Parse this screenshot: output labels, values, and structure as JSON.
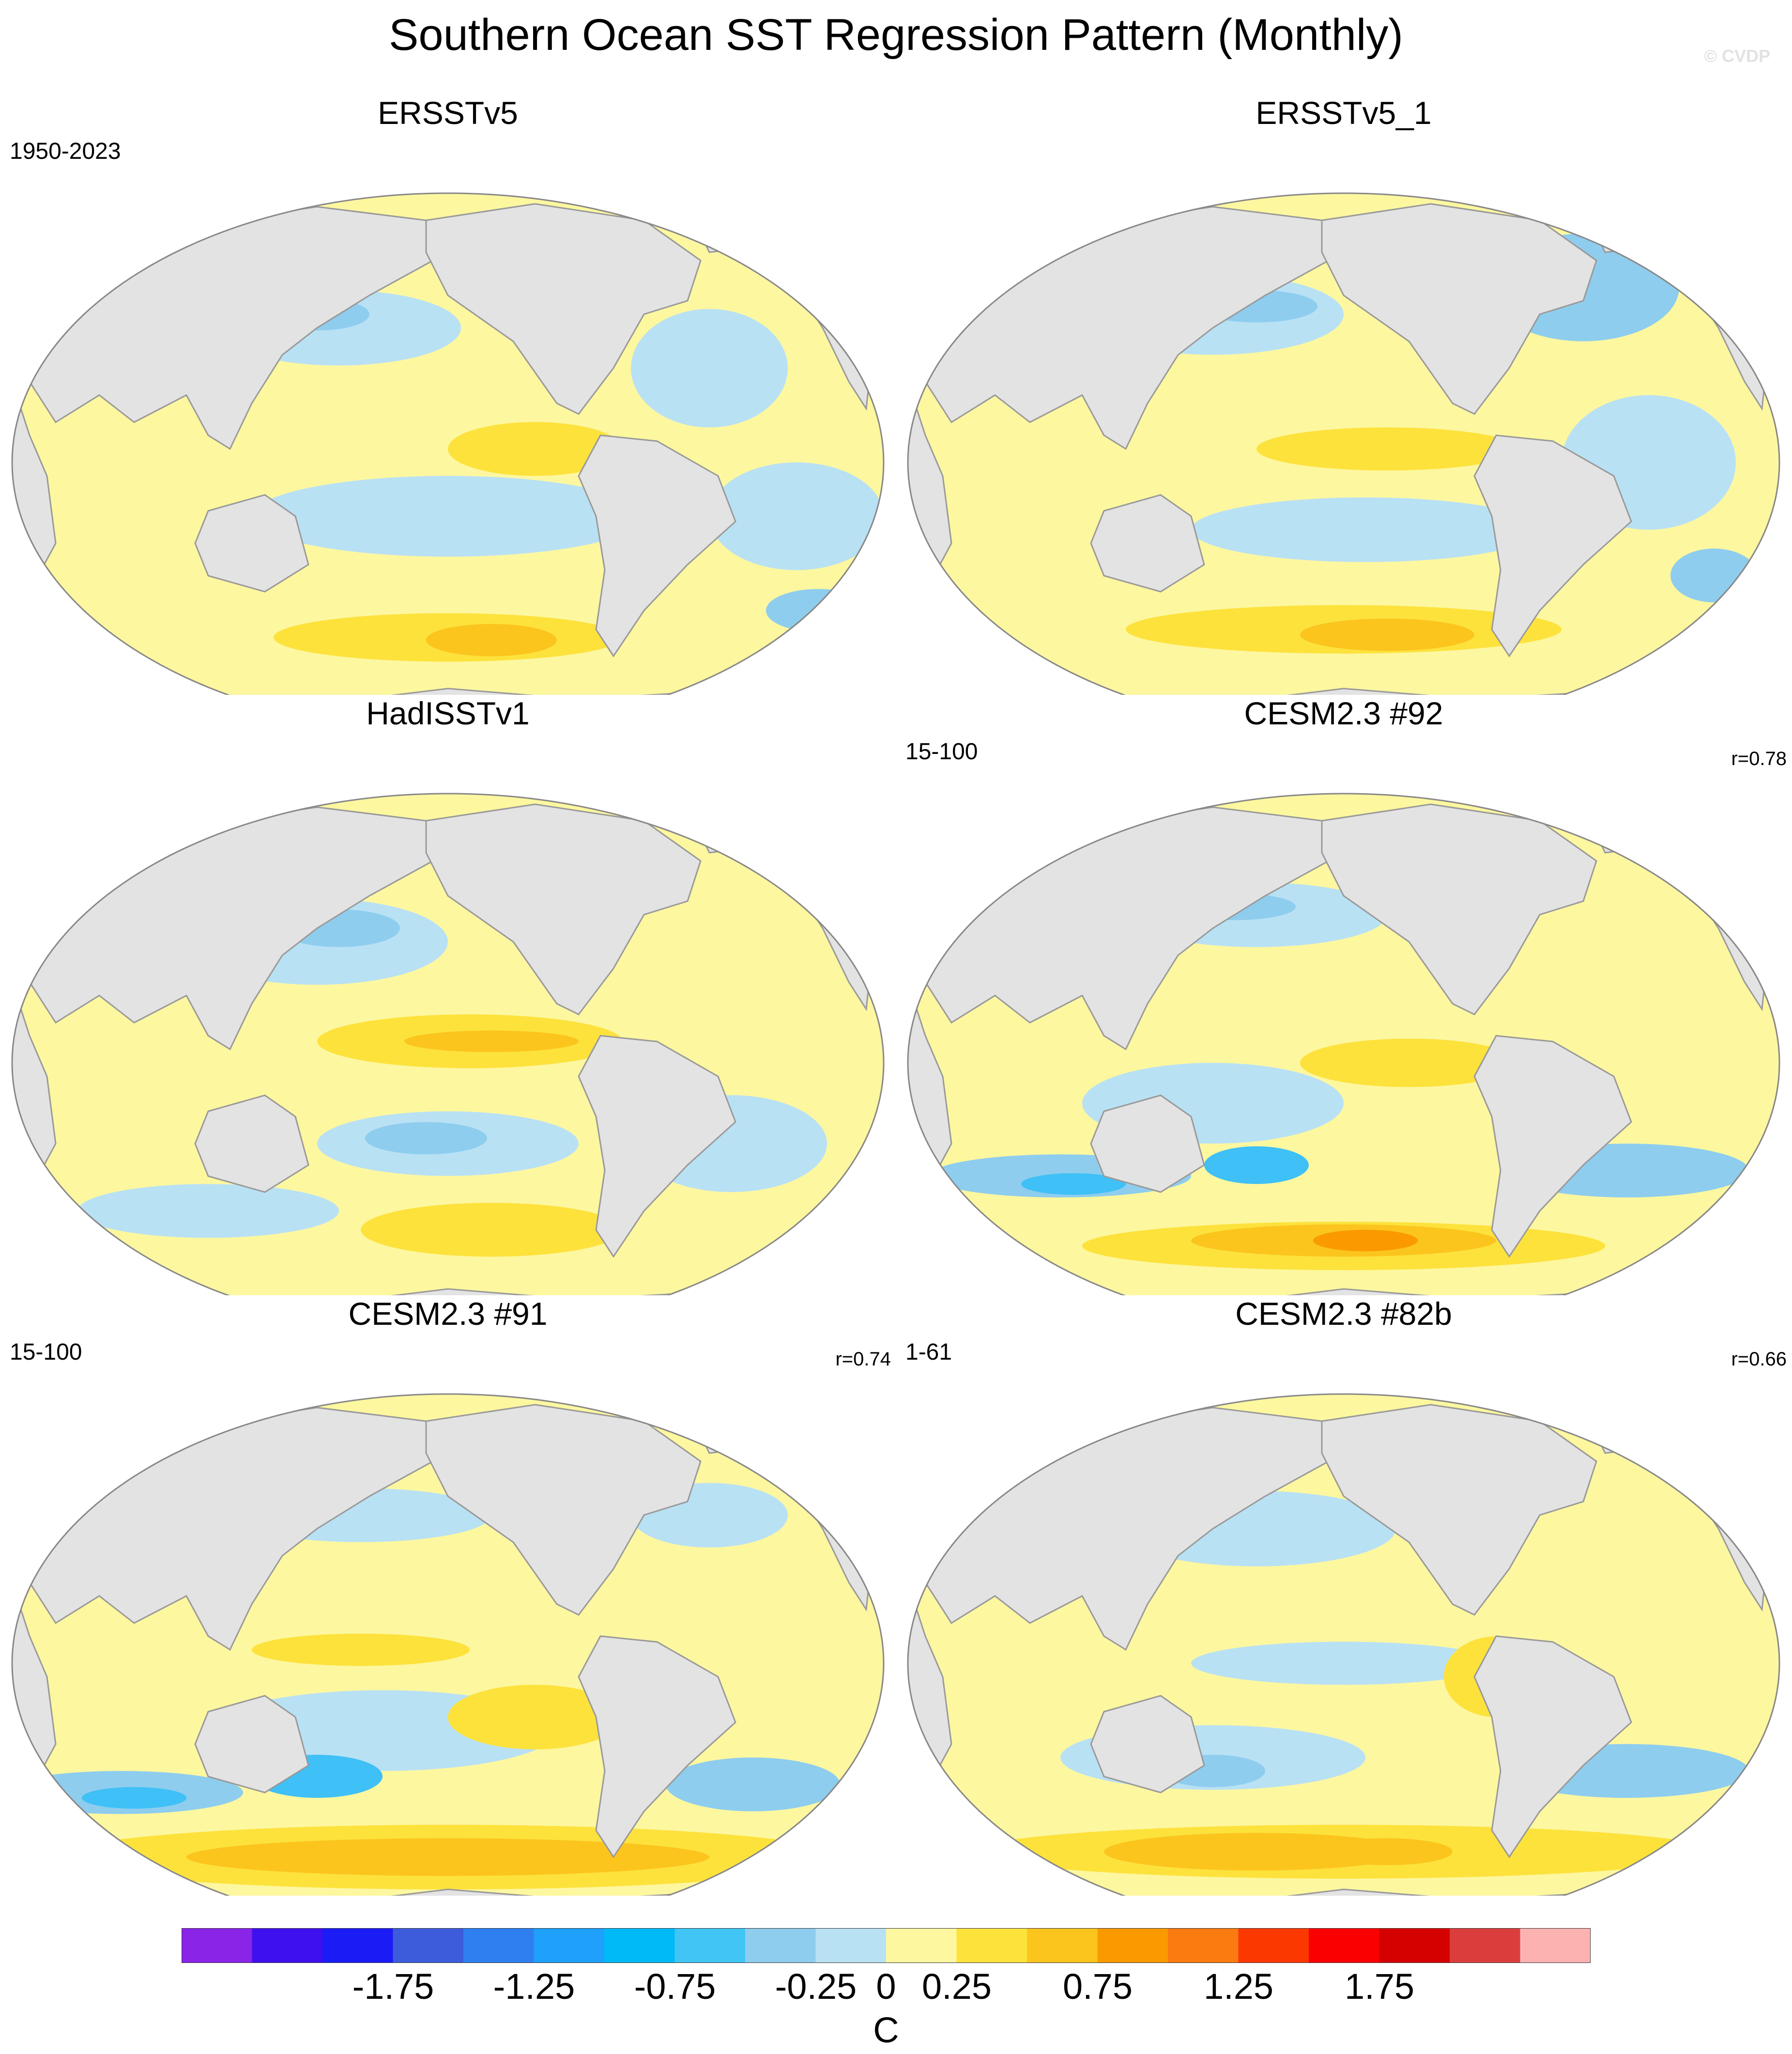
{
  "title": "Southern Ocean SST Regression Pattern (Monthly)",
  "watermark": "© CVDP",
  "colors": {
    "land": "#e3e3e3",
    "coast": "#9a9a9a",
    "neg1": "#b9e1f4",
    "neg2": "#8ecdee",
    "neg3": "#3fc0f6",
    "pos1": "#fdf7a0",
    "pos2": "#fde23c",
    "pos3": "#fbc51e",
    "pos4": "#fa9a00"
  },
  "panels": [
    {
      "title": "ERSSTv5",
      "left_label": "1950-2023",
      "right_label": "",
      "pattern": "obs1"
    },
    {
      "title": "ERSSTv5_1",
      "left_label": "",
      "right_label": "",
      "pattern": "obs2"
    },
    {
      "title": "HadISSTv1",
      "left_label": "",
      "right_label": "",
      "pattern": "obs3"
    },
    {
      "title": "CESM2.3 #92",
      "left_label": "15-100",
      "right_label": "r=0.78",
      "pattern": "m1"
    },
    {
      "title": "CESM2.3 #91",
      "left_label": "15-100",
      "right_label": "r=0.74",
      "pattern": "m2"
    },
    {
      "title": "CESM2.3 #82b",
      "left_label": "1-61",
      "right_label": "r=0.66",
      "pattern": "m3"
    }
  ],
  "chart_data": {
    "type": "heatmap",
    "title": "Southern Ocean SST Regression Pattern (Monthly)",
    "units": "C",
    "colorbar": {
      "levels": [
        -2.0,
        -1.75,
        -1.5,
        -1.25,
        -1.0,
        -0.75,
        -0.5,
        -0.25,
        0,
        0.25,
        0.5,
        0.75,
        1.0,
        1.25,
        1.5,
        1.75,
        2.0
      ],
      "tick_labels": [
        "-1.75",
        "-1.25",
        "-0.75",
        "-0.25",
        "0",
        "0.25",
        "0.75",
        "1.25",
        "1.75"
      ],
      "tick_values": [
        -1.75,
        -1.25,
        -0.75,
        -0.25,
        0,
        0.25,
        0.75,
        1.25,
        1.75
      ],
      "colors": [
        "#8a24e6",
        "#3e10ee",
        "#1a1bf5",
        "#3d5cdc",
        "#2f7ff0",
        "#1fa0fb",
        "#00b9f7",
        "#41c5f5",
        "#8ecdee",
        "#b9e1f4",
        "#fdf7a0",
        "#fde23c",
        "#fbc51e",
        "#fa9a00",
        "#fb7b10",
        "#fb3800",
        "#fa0000",
        "#d50000",
        "#db3d3d",
        "#fdb2b2"
      ]
    },
    "panels": [
      {
        "name": "ERSSTv5",
        "period": "1950-2023",
        "pattern_correlation": null
      },
      {
        "name": "ERSSTv5_1",
        "period": "",
        "pattern_correlation": null
      },
      {
        "name": "HadISSTv1",
        "period": "",
        "pattern_correlation": null
      },
      {
        "name": "CESM2.3 #92",
        "period": "15-100",
        "pattern_correlation": 0.78
      },
      {
        "name": "CESM2.3 #91",
        "period": "15-100",
        "pattern_correlation": 0.74
      },
      {
        "name": "CESM2.3 #82b",
        "period": "1-61",
        "pattern_correlation": 0.66
      }
    ]
  }
}
